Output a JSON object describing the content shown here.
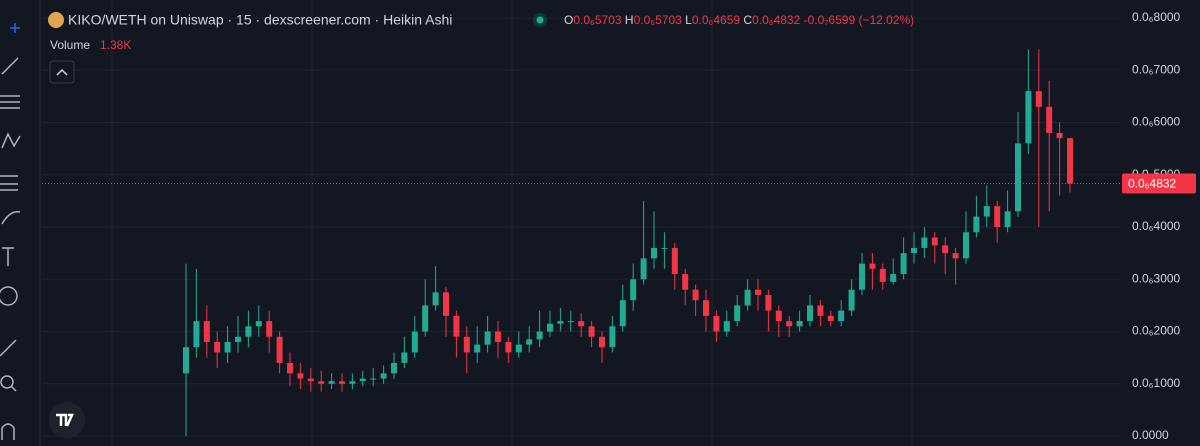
{
  "chart_data": {
    "type": "candlestick",
    "title": "KIKO/WETH on Uniswap · 15 · dexscreener.com · Heikin Ashi",
    "legend": {
      "open_label": "O",
      "open": "0.0₆5703",
      "high_label": "H",
      "high": "0.0₆5703",
      "low_label": "L",
      "low": "0.0₆4659",
      "close_label": "C",
      "close": "0.0₆4832",
      "change": "-0.0₇6599 (−12.02%)"
    },
    "volume_label": "Volume",
    "volume": "1.38K",
    "current_price": {
      "value": 4.832e-07,
      "label": "0.0₆4832"
    },
    "up_color": "#22ab94",
    "down_color": "#f23645",
    "grid": true,
    "ylim": [
      -1.9e-08,
      8.344e-07
    ],
    "yticks": [
      {
        "value": 0,
        "label": "0.0000"
      },
      {
        "value": 1e-07,
        "label": "0.0₆1000"
      },
      {
        "value": 2e-07,
        "label": "0.0₆2000"
      },
      {
        "value": 3e-07,
        "label": "0.0₆3000"
      },
      {
        "value": 4e-07,
        "label": "0.0₆4000"
      },
      {
        "value": 5e-07,
        "label": "0.0₆5000"
      },
      {
        "value": 6e-07,
        "label": "0.0₆6000"
      },
      {
        "value": 7e-07,
        "label": "0.0₆7000"
      },
      {
        "value": 8e-07,
        "label": "0.0₆8000"
      }
    ],
    "open": [
      1.2e-07,
      1.7e-07,
      2.2e-07,
      1.8e-07,
      1.6e-07,
      1.8e-07,
      1.9e-07,
      2.1e-07,
      2.2e-07,
      1.9e-07,
      1.4e-07,
      1.2e-07,
      1.1e-07,
      1.05e-07,
      1e-07,
      1.05e-07,
      1e-07,
      1.05e-07,
      1.1e-07,
      1.1e-07,
      1.2e-07,
      1.4e-07,
      1.6e-07,
      2e-07,
      2.5e-07,
      2.75e-07,
      2.3e-07,
      1.9e-07,
      1.6e-07,
      1.75e-07,
      2e-07,
      1.8e-07,
      1.6e-07,
      1.75e-07,
      1.85e-07,
      2e-07,
      2.15e-07,
      2.2e-07,
      2.2e-07,
      2.1e-07,
      1.9e-07,
      1.7e-07,
      2.1e-07,
      2.6e-07,
      3e-07,
      3.4e-07,
      3.6e-07,
      3.6e-07,
      3.1e-07,
      2.8e-07,
      2.6e-07,
      2.3e-07,
      2e-07,
      2.2e-07,
      2.5e-07,
      2.8e-07,
      2.7e-07,
      2.4e-07,
      2.2e-07,
      2.1e-07,
      2.2e-07,
      2.5e-07,
      2.3e-07,
      2.2e-07,
      2.4e-07,
      2.8e-07,
      3.3e-07,
      3.2e-07,
      2.95e-07,
      3.1e-07,
      3.5e-07,
      3.6e-07,
      3.8e-07,
      3.65e-07,
      3.5e-07,
      3.4e-07,
      3.9e-07,
      4.2e-07,
      4.4e-07,
      4e-07,
      4.3e-07,
      5.6e-07,
      6.6e-07,
      6.3e-07,
      5.8e-07,
      5.7e-07
    ],
    "high": [
      3.3e-07,
      3.2e-07,
      2.5e-07,
      2e-07,
      2.1e-07,
      2.3e-07,
      2.4e-07,
      2.5e-07,
      2.4e-07,
      2e-07,
      1.6e-07,
      1.4e-07,
      1.3e-07,
      1.25e-07,
      1.2e-07,
      1.2e-07,
      1.2e-07,
      1.25e-07,
      1.3e-07,
      1.35e-07,
      1.6e-07,
      1.9e-07,
      2.3e-07,
      3e-07,
      3.25e-07,
      2.85e-07,
      2.4e-07,
      2.1e-07,
      2.1e-07,
      2.3e-07,
      2.2e-07,
      1.9e-07,
      2e-07,
      2.1e-07,
      2.4e-07,
      2.4e-07,
      2.45e-07,
      2.4e-07,
      2.35e-07,
      2.2e-07,
      2e-07,
      2.3e-07,
      2.9e-07,
      3.3e-07,
      4.5e-07,
      4.3e-07,
      3.9e-07,
      3.7e-07,
      3.2e-07,
      2.9e-07,
      2.8e-07,
      2.4e-07,
      2.4e-07,
      2.7e-07,
      3e-07,
      3e-07,
      2.8e-07,
      2.5e-07,
      2.3e-07,
      2.4e-07,
      2.7e-07,
      2.6e-07,
      2.4e-07,
      2.6e-07,
      3e-07,
      3.5e-07,
      3.5e-07,
      3.3e-07,
      3.4e-07,
      3.8e-07,
      3.9e-07,
      4e-07,
      3.9e-07,
      3.8e-07,
      3.6e-07,
      4.3e-07,
      4.6e-07,
      4.8e-07,
      4.5e-07,
      4.7e-07,
      6.2e-07,
      7.4e-07,
      7.4e-07,
      6.8e-07,
      6e-07,
      5.7e-07
    ],
    "low": [
      0,
      1.5e-07,
      1.5e-07,
      1.3e-07,
      1.4e-07,
      1.6e-07,
      1.7e-07,
      1.9e-07,
      1.6e-07,
      1.2e-07,
      9.5e-08,
      9e-08,
      8.5e-08,
      8.5e-08,
      9e-08,
      8.5e-08,
      9e-08,
      9.5e-08,
      9.5e-08,
      1e-07,
      1.1e-07,
      1.3e-07,
      1.5e-07,
      1.9e-07,
      2.4e-07,
      1.9e-07,
      1.5e-07,
      1.2e-07,
      1.4e-07,
      1.6e-07,
      1.5e-07,
      1.4e-07,
      1.5e-07,
      1.6e-07,
      1.7e-07,
      1.9e-07,
      2e-07,
      2e-07,
      1.9e-07,
      1.7e-07,
      1.4e-07,
      1.6e-07,
      2e-07,
      2.4e-07,
      2.9e-07,
      3.2e-07,
      3.2e-07,
      2.8e-07,
      2.5e-07,
      2.3e-07,
      2e-07,
      1.8e-07,
      1.9e-07,
      2.1e-07,
      2.4e-07,
      2.4e-07,
      2e-07,
      1.9e-07,
      1.9e-07,
      2e-07,
      2.1e-07,
      2.1e-07,
      2.1e-07,
      2.1e-07,
      2.3e-07,
      2.7e-07,
      2.8e-07,
      2.8e-07,
      2.9e-07,
      3e-07,
      3.3e-07,
      3.4e-07,
      3.3e-07,
      3.1e-07,
      2.9e-07,
      3.3e-07,
      3.8e-07,
      4e-07,
      3.7e-07,
      3.9e-07,
      4.2e-07,
      5.4e-07,
      4e-07,
      4.3e-07,
      4.6e-07,
      4.66e-07
    ],
    "close": [
      1.7e-07,
      2.2e-07,
      1.8e-07,
      1.6e-07,
      1.8e-07,
      1.9e-07,
      2.1e-07,
      2.2e-07,
      1.9e-07,
      1.4e-07,
      1.2e-07,
      1.1e-07,
      1.05e-07,
      1e-07,
      1.05e-07,
      1e-07,
      1.05e-07,
      1.1e-07,
      1.1e-07,
      1.2e-07,
      1.4e-07,
      1.6e-07,
      2e-07,
      2.5e-07,
      2.75e-07,
      2.3e-07,
      1.9e-07,
      1.6e-07,
      1.75e-07,
      2e-07,
      1.8e-07,
      1.6e-07,
      1.75e-07,
      1.85e-07,
      2e-07,
      2.15e-07,
      2.2e-07,
      2.2e-07,
      2.1e-07,
      1.9e-07,
      1.7e-07,
      2.1e-07,
      2.6e-07,
      3e-07,
      3.4e-07,
      3.6e-07,
      3.6e-07,
      3.1e-07,
      2.8e-07,
      2.6e-07,
      2.3e-07,
      2e-07,
      2.2e-07,
      2.5e-07,
      2.8e-07,
      2.7e-07,
      2.4e-07,
      2.2e-07,
      2.1e-07,
      2.2e-07,
      2.5e-07,
      2.3e-07,
      2.2e-07,
      2.4e-07,
      2.8e-07,
      3.3e-07,
      3.2e-07,
      2.95e-07,
      3.1e-07,
      3.5e-07,
      3.6e-07,
      3.8e-07,
      3.65e-07,
      3.5e-07,
      3.4e-07,
      3.9e-07,
      4.2e-07,
      4.4e-07,
      4e-07,
      4.3e-07,
      5.6e-07,
      6.6e-07,
      6.3e-07,
      5.8e-07,
      5.7e-07,
      4.832e-07
    ]
  }
}
